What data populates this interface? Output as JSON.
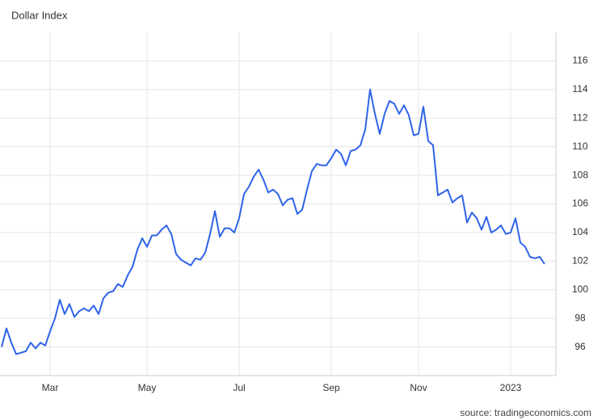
{
  "chart_data": {
    "type": "line",
    "title": "Dollar Index",
    "source": "source: tradingeconomics.com",
    "categories": [
      null,
      null,
      null,
      null,
      null,
      null,
      null,
      null,
      null,
      null,
      "Mar",
      null,
      null,
      null,
      null,
      null,
      null,
      null,
      null,
      null,
      null,
      null,
      null,
      null,
      null,
      null,
      null,
      null,
      null,
      null,
      "May",
      null,
      null,
      null,
      null,
      null,
      null,
      null,
      null,
      null,
      null,
      null,
      null,
      null,
      null,
      null,
      null,
      null,
      null,
      "Jul",
      null,
      null,
      null,
      null,
      null,
      null,
      null,
      null,
      null,
      null,
      null,
      null,
      null,
      null,
      null,
      null,
      null,
      null,
      "Sep",
      null,
      null,
      null,
      null,
      null,
      null,
      null,
      null,
      null,
      null,
      null,
      null,
      null,
      null,
      null,
      null,
      null,
      "Nov",
      null,
      null,
      null,
      null,
      null,
      null,
      null,
      null,
      null,
      null,
      null,
      null,
      null,
      null,
      null,
      null,
      null,
      null,
      "2023",
      null,
      null,
      null,
      null,
      null,
      null,
      null
    ],
    "series": [
      {
        "name": "Dollar Index",
        "color": "#2f63e8",
        "values": [
          96.0,
          97.3,
          96.3,
          95.5,
          95.6,
          95.7,
          96.3,
          95.9,
          96.3,
          96.1,
          97.1,
          98.0,
          99.3,
          98.3,
          99.0,
          98.1,
          98.5,
          98.7,
          98.5,
          98.9,
          98.3,
          99.4,
          99.8,
          99.9,
          100.4,
          100.2,
          101.0,
          101.6,
          102.8,
          103.6,
          103.0,
          103.8,
          103.8,
          104.2,
          104.5,
          103.9,
          102.5,
          102.1,
          101.9,
          101.7,
          102.2,
          102.1,
          102.6,
          103.9,
          105.5,
          103.7,
          104.3,
          104.3,
          104.0,
          105.0,
          106.7,
          107.2,
          107.9,
          108.4,
          107.7,
          106.8,
          107.0,
          106.7,
          105.9,
          106.3,
          106.4,
          105.3,
          105.6,
          107.0,
          108.3,
          108.8,
          108.7,
          108.7,
          109.2,
          109.8,
          109.5,
          108.7,
          109.7,
          109.8,
          110.1,
          111.2,
          114.0,
          112.3,
          110.9,
          112.3,
          113.2,
          113.0,
          112.3,
          112.9,
          112.2,
          110.8,
          110.9,
          112.8,
          110.4,
          110.1,
          106.6,
          106.8,
          107.0,
          106.1,
          106.4,
          106.6,
          104.7,
          105.4,
          105.0,
          104.2,
          105.1,
          104.0,
          104.2,
          104.5,
          103.9,
          104.0,
          105.0,
          103.3,
          103.0,
          102.3,
          102.2,
          102.3,
          101.8
        ]
      }
    ],
    "ylim": [
      94,
      118
    ],
    "yticks": [
      96,
      98,
      100,
      102,
      104,
      106,
      108,
      110,
      112,
      114,
      116
    ],
    "grid": true
  }
}
